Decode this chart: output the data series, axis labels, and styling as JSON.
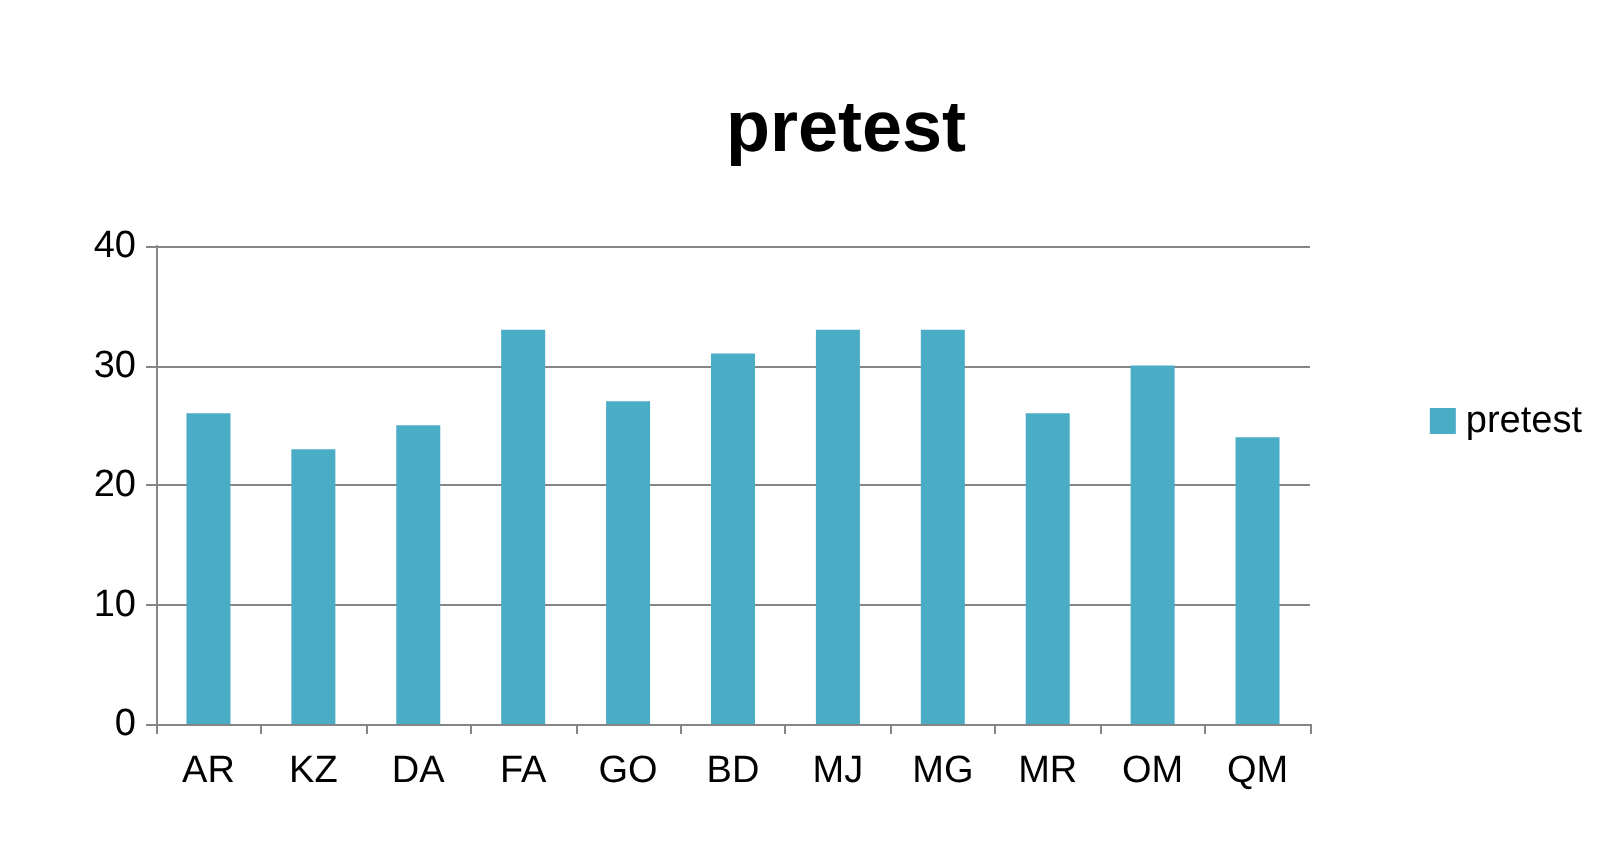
{
  "chart_data": {
    "type": "bar",
    "title": "pretest",
    "categories": [
      "AR",
      "KZ",
      "DA",
      "FA",
      "GO",
      "BD",
      "MJ",
      "MG",
      "MR",
      "OM",
      "QM"
    ],
    "series": [
      {
        "name": "pretest",
        "color": "#4bacc6",
        "values": [
          26,
          23,
          25,
          33,
          27,
          31,
          33,
          33,
          26,
          30,
          24
        ]
      }
    ],
    "ylim": [
      0,
      40
    ],
    "yticks": [
      0,
      10,
      20,
      30,
      40
    ],
    "grid": "y",
    "legend": "right"
  }
}
